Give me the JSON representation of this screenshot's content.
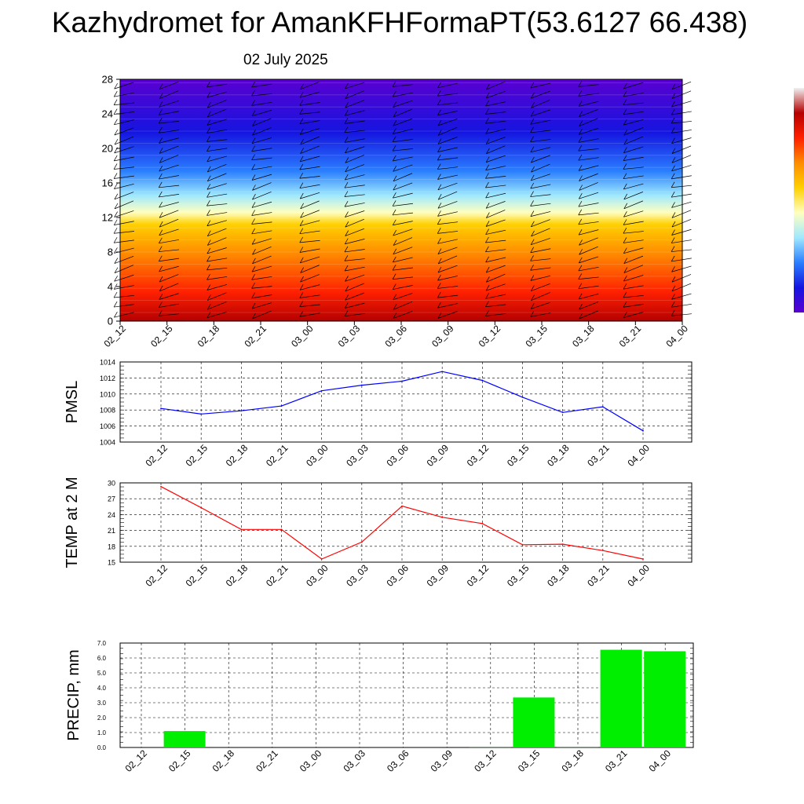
{
  "title": "Kazhydromet for AmanKFHFormaPT(53.6127 66.438)",
  "subtitle": "02 July 2025",
  "time_labels": [
    "02_12",
    "02_15",
    "02_18",
    "02_21",
    "03_00",
    "03_03",
    "03_06",
    "03_09",
    "03_12",
    "03_15",
    "03_18",
    "03_21",
    "04_00"
  ],
  "colors": {
    "pmsl_line": "#0000ff",
    "temp_line": "#ff0000",
    "precip_bar": "#00ee00"
  },
  "chart_data": [
    {
      "type": "heatmap",
      "title": "",
      "xlabel": "",
      "ylabel": "",
      "x": [
        "02_12",
        "02_15",
        "02_18",
        "02_21",
        "03_00",
        "03_03",
        "03_06",
        "03_09",
        "03_12",
        "03_15",
        "03_18",
        "03_21",
        "04_00"
      ],
      "y_ticks": [
        0,
        4,
        8,
        12,
        16,
        20,
        24,
        28
      ],
      "ylim": [
        0,
        28
      ],
      "colorscale": [
        "#b50000",
        "#ff2000",
        "#ff8c00",
        "#ffd000",
        "#ffffc0",
        "#9fe8ff",
        "#2a7fff",
        "#1515e0",
        "#5a00d0"
      ],
      "overlay": "wind barbs",
      "grid": false
    },
    {
      "type": "line",
      "ylabel": "PMSL",
      "ylim": [
        1004,
        1014
      ],
      "y_ticks": [
        1004,
        1006,
        1008,
        1010,
        1012,
        1014
      ],
      "x": [
        "02_12",
        "02_15",
        "02_18",
        "02_21",
        "03_00",
        "03_03",
        "03_06",
        "03_09",
        "03_12",
        "03_15",
        "03_18",
        "03_21",
        "04_00"
      ],
      "values": [
        1008.2,
        1007.5,
        1007.9,
        1008.5,
        1010.4,
        1011.1,
        1011.6,
        1012.8,
        1011.7,
        1009.6,
        1007.7,
        1008.4,
        1005.4
      ],
      "grid": true
    },
    {
      "type": "line",
      "ylabel": "TEMP at 2 M",
      "ylim": [
        15,
        30
      ],
      "y_ticks": [
        15,
        18,
        21,
        24,
        27,
        30
      ],
      "x": [
        "02_12",
        "02_15",
        "02_18",
        "02_21",
        "03_00",
        "03_03",
        "03_06",
        "03_09",
        "03_12",
        "03_15",
        "03_18",
        "03_21",
        "04_00"
      ],
      "values": [
        29.3,
        25.3,
        21.2,
        21.2,
        15.6,
        18.8,
        25.6,
        23.5,
        22.3,
        18.3,
        18.4,
        17.2,
        15.6
      ],
      "grid": true
    },
    {
      "type": "bar",
      "ylabel": "PRECIP, mm",
      "ylim": [
        0,
        7
      ],
      "y_ticks": [
        "0.0",
        "1.0",
        "2.0",
        "3.0",
        "4.0",
        "5.0",
        "6.0",
        "7.0"
      ],
      "categories": [
        "02_12",
        "02_15",
        "02_18",
        "02_21",
        "03_00",
        "03_03",
        "03_06",
        "03_09",
        "03_12",
        "03_15",
        "03_18",
        "03_21",
        "04_00"
      ],
      "values": [
        0,
        1.1,
        0,
        0,
        0,
        0,
        0,
        0,
        0.05,
        3.35,
        0.05,
        6.55,
        6.45
      ],
      "grid": true
    }
  ]
}
